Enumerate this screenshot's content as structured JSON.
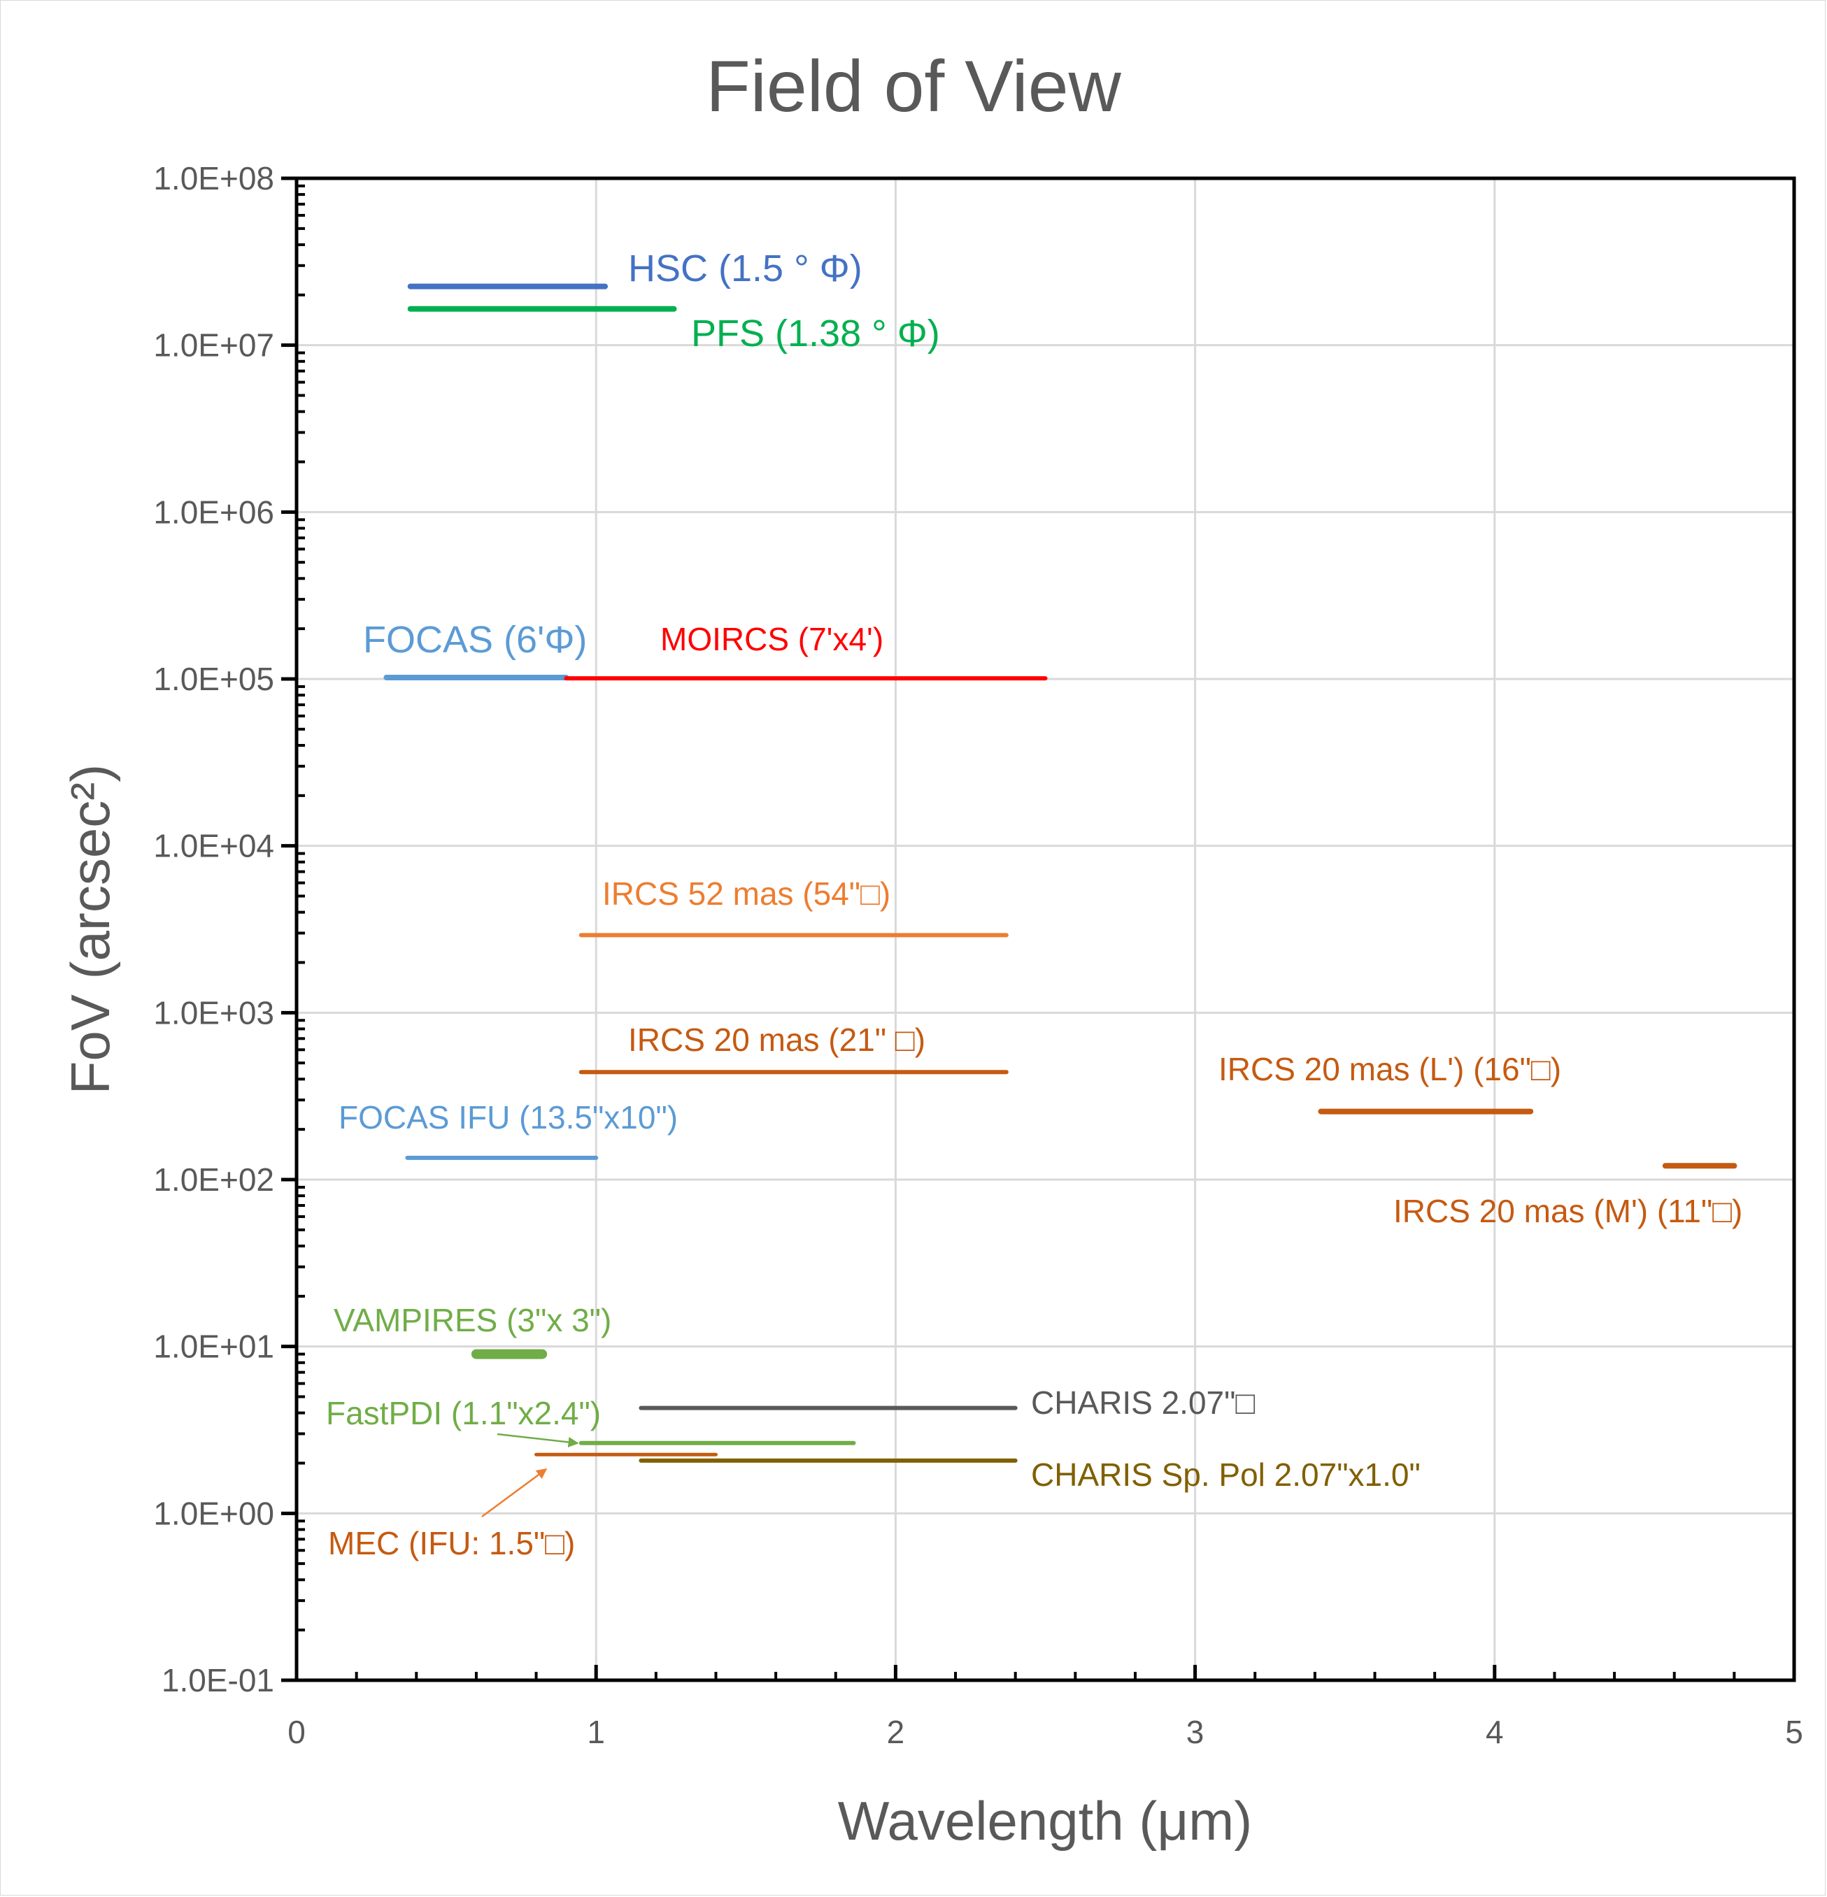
{
  "chart_data": {
    "type": "line",
    "title": "Field of View",
    "xlabel": "Wavelength (μm)",
    "ylabel": "FoV (arcsec²)",
    "xlim": [
      0,
      5
    ],
    "ylim": [
      0.1,
      100000000
    ],
    "y_scale": "log",
    "grid": true,
    "legend": "none",
    "x_ticks": [
      "0",
      "1",
      "2",
      "3",
      "4",
      "5"
    ],
    "y_ticks": [
      "1.0E-01",
      "1.0E+00",
      "1.0E+01",
      "1.0E+02",
      "1.0E+03",
      "1.0E+04",
      "1.0E+05",
      "1.0E+06",
      "1.0E+07",
      "1.0E+08"
    ],
    "series": [
      {
        "label": "HSC (1.5 ° Φ)",
        "color": "#4472c4",
        "x": [
          0.38,
          1.03
        ],
        "y": [
          22500000,
          22500000
        ]
      },
      {
        "label": "PFS (1.38 ° Φ)",
        "color": "#00b050",
        "x": [
          0.38,
          1.26
        ],
        "y": [
          16500000,
          16500000
        ]
      },
      {
        "label": "FOCAS (6'Φ)",
        "color": "#5b9bd5",
        "x": [
          0.3,
          0.9
        ],
        "y": [
          102000,
          102000
        ]
      },
      {
        "label": "MOIRCS (7'x4')",
        "color": "#ff0000",
        "x": [
          0.9,
          2.5
        ],
        "y": [
          100800,
          100800
        ]
      },
      {
        "label": "IRCS 52 mas (54\"□)",
        "color": "#ed7d31",
        "x": [
          0.95,
          2.37
        ],
        "y": [
          2916,
          2916
        ]
      },
      {
        "label": "IRCS 20 mas (21\" □)",
        "color": "#c55a11",
        "x": [
          0.95,
          2.37
        ],
        "y": [
          441,
          441
        ]
      },
      {
        "label": "IRCS 20 mas (L') (16\"□)",
        "color": "#c55a11",
        "x": [
          3.42,
          4.12
        ],
        "y": [
          256,
          256
        ]
      },
      {
        "label": "IRCS 20 mas (M') (11\"□)",
        "color": "#c55a11",
        "x": [
          4.57,
          4.8
        ],
        "y": [
          121,
          121
        ]
      },
      {
        "label": "FOCAS IFU (13.5\"x10\")",
        "color": "#5b9bd5",
        "x": [
          0.37,
          1.0
        ],
        "y": [
          135,
          135
        ]
      },
      {
        "label": "VAMPIRES (3\"x 3\")",
        "color": "#70ad47",
        "x": [
          0.6,
          0.82
        ],
        "y": [
          9,
          9
        ]
      },
      {
        "label": "CHARIS 2.07\"□",
        "color": "#595959",
        "x": [
          1.15,
          2.4
        ],
        "y": [
          4.28,
          4.28
        ]
      },
      {
        "label": "FastPDI (1.1\"x2.4\")",
        "color": "#70ad47",
        "x": [
          0.95,
          1.86
        ],
        "y": [
          2.64,
          2.64
        ]
      },
      {
        "label": "MEC (IFU: 1.5\"□)",
        "color": "#c55a11",
        "x": [
          0.8,
          1.4
        ],
        "y": [
          2.25,
          2.25
        ]
      },
      {
        "label": "CHARIS Sp. Pol 2.07\"x1.0\"",
        "color": "#806000",
        "x": [
          1.15,
          2.4
        ],
        "y": [
          2.07,
          2.07
        ]
      }
    ]
  }
}
